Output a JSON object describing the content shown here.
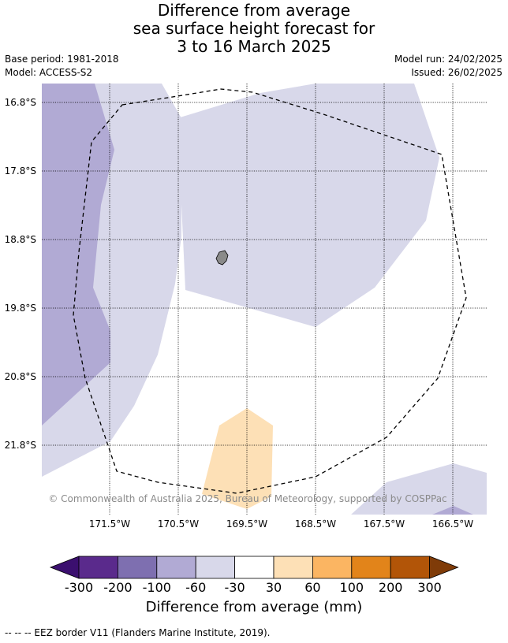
{
  "title_lines": [
    "Difference from average",
    "sea surface height forecast for",
    "3 to 16 March 2025"
  ],
  "base_period": "Base period: 1981-2018",
  "model": "Model: ACCESS-S2",
  "model_run": "Model run: 24/02/2025",
  "issued": "Issued: 26/02/2025",
  "lat_labels": [
    "16.8°S",
    "17.8°S",
    "18.8°S",
    "19.8°S",
    "20.8°S",
    "21.8°S"
  ],
  "lon_labels": [
    "171.5°W",
    "170.5°W",
    "169.5°W",
    "168.5°W",
    "167.5°W",
    "166.5°W"
  ],
  "credit": "© Commonwealth of Australia 2025, Bureau of Meteorology, supported by COSPPac",
  "colorbar": {
    "labels": [
      "-300",
      "-200",
      "-100",
      "-60",
      "-30",
      "30",
      "60",
      "100",
      "200",
      "300"
    ],
    "colors": [
      "#3b0f6f",
      "#5a2a8c",
      "#7e6fb0",
      "#b1aad4",
      "#d8d8ea",
      "#ffffff",
      "#fde0b6",
      "#fbb562",
      "#e2841a",
      "#b25508",
      "#7f3b08"
    ],
    "title": "Difference from average (mm)"
  },
  "footer": "--  --  -- EEZ border V11 (Flanders Marine Institute, 2019)."
}
